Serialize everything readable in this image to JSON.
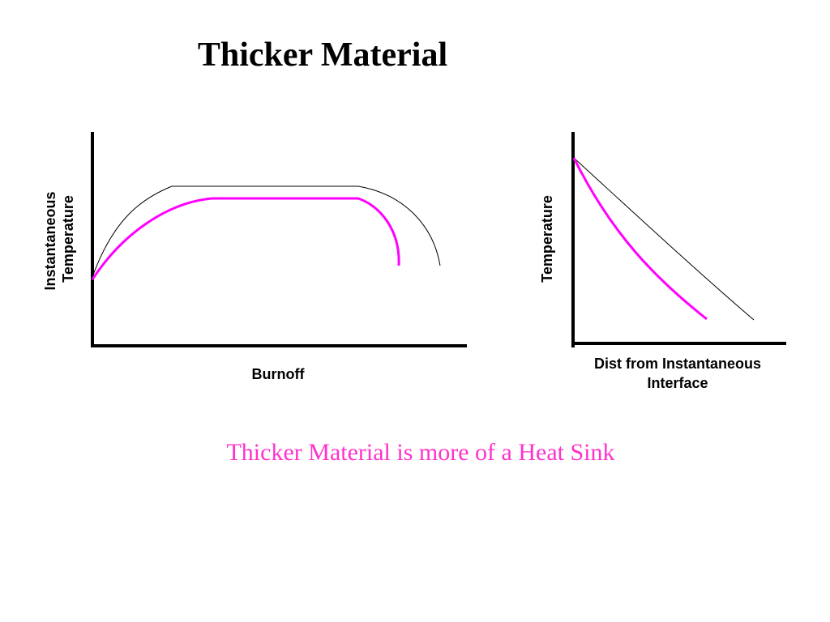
{
  "title": "Thicker Material",
  "caption": "Thicker Material is more of a Heat Sink",
  "colors": {
    "thin_curve": "#000000",
    "thick_curve": "#ff00ff",
    "caption": "#ff33cc",
    "axes": "#000000"
  },
  "left_plot": {
    "ylabel_line1": "Instantaneous",
    "ylabel_line2": "Temperature",
    "xlabel": "Burnoff"
  },
  "right_plot": {
    "ylabel": "Temperature",
    "xlabel_line1": "Dist from Instantaneous",
    "xlabel_line2": "Interface"
  }
}
